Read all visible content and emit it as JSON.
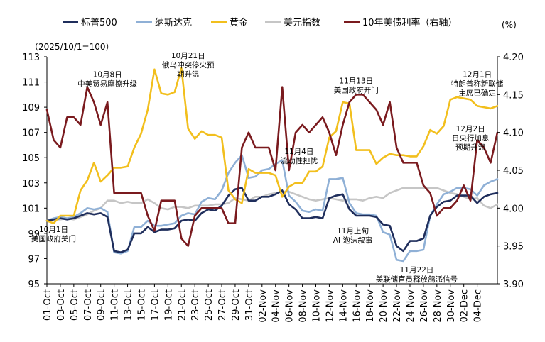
{
  "chart_data": {
    "type": "line",
    "left_axis_note": "（2025/10/1=100）",
    "right_axis_note": "(%)",
    "legend": [
      {
        "key": "sp500",
        "label": "标普500",
        "color": "#1f2e5c"
      },
      {
        "key": "nasdaq",
        "label": "纳斯达克",
        "color": "#8fb0d6"
      },
      {
        "key": "gold",
        "label": "黄金",
        "color": "#f2bf1d"
      },
      {
        "key": "dxy",
        "label": "美元指数",
        "color": "#c6c6c6"
      },
      {
        "key": "ust10",
        "label": "10年美债利率（右轴）",
        "color": "#7a1a1e"
      }
    ],
    "ylim": [
      95,
      113
    ],
    "y_ticks": [
      95,
      97,
      99,
      101,
      103,
      105,
      107,
      109,
      111,
      113
    ],
    "y2lim": [
      3.9,
      4.2
    ],
    "y2_ticks": [
      "3.90",
      "3.95",
      "4.00",
      "4.05",
      "4.10",
      "4.15",
      "4.20"
    ],
    "x_ticks": [
      "01-Oct",
      "03-Oct",
      "05-Oct",
      "07-Oct",
      "09-Oct",
      "11-Oct",
      "13-Oct",
      "15-Oct",
      "17-Oct",
      "19-Oct",
      "21-Oct",
      "23-Oct",
      "25-Oct",
      "27-Oct",
      "29-Oct",
      "31-Oct",
      "02-Nov",
      "04-Nov",
      "06-Nov",
      "08-Nov",
      "10-Nov",
      "12-Nov",
      "14-Nov",
      "16-Nov",
      "18-Nov",
      "20-Nov",
      "22-Nov",
      "24-Nov",
      "26-Nov",
      "28-Nov",
      "30-Nov",
      "02-Dec",
      "04-Dec"
    ],
    "series": {
      "sp500": [
        [
          0,
          100
        ],
        [
          1,
          100.1
        ],
        [
          2,
          100.2
        ],
        [
          3,
          100.1
        ],
        [
          4,
          100.2
        ],
        [
          5,
          100.4
        ],
        [
          6,
          100.6
        ],
        [
          7,
          100.5
        ],
        [
          8,
          100.6
        ],
        [
          9,
          100.3
        ],
        [
          10,
          97.6
        ],
        [
          11,
          97.5
        ],
        [
          12,
          97.7
        ],
        [
          13,
          99.0
        ],
        [
          14,
          99.0
        ],
        [
          15,
          99.5
        ],
        [
          16,
          99.1
        ],
        [
          17,
          99.3
        ],
        [
          18,
          99.3
        ],
        [
          19,
          99.4
        ],
        [
          20,
          100.0
        ],
        [
          21,
          100.1
        ],
        [
          22,
          100.0
        ],
        [
          23,
          100.6
        ],
        [
          24,
          100.9
        ],
        [
          25,
          100.8
        ],
        [
          26,
          101.2
        ],
        [
          27,
          102.0
        ],
        [
          28,
          102.5
        ],
        [
          29,
          102.6
        ],
        [
          30,
          101.6
        ],
        [
          31,
          101.6
        ],
        [
          32,
          101.9
        ],
        [
          33,
          101.9
        ],
        [
          34,
          102.1
        ],
        [
          35,
          102.4
        ],
        [
          36,
          101.3
        ],
        [
          37,
          100.9
        ],
        [
          38,
          100.2
        ],
        [
          39,
          100.2
        ],
        [
          40,
          100.3
        ],
        [
          41,
          100.2
        ],
        [
          42,
          101.8
        ],
        [
          43,
          102.0
        ],
        [
          44,
          102.1
        ],
        [
          45,
          100.9
        ],
        [
          46,
          100.4
        ],
        [
          47,
          100.4
        ],
        [
          48,
          100.4
        ],
        [
          49,
          100.3
        ],
        [
          50,
          99.7
        ],
        [
          51,
          99.6
        ],
        [
          52,
          98.0
        ],
        [
          53,
          97.6
        ],
        [
          54,
          98.4
        ],
        [
          55,
          98.4
        ],
        [
          56,
          98.6
        ],
        [
          57,
          100.4
        ],
        [
          58,
          101.1
        ],
        [
          59,
          101.5
        ],
        [
          60,
          101.6
        ],
        [
          61,
          102.0
        ],
        [
          62,
          102.0
        ],
        [
          63,
          102.0
        ],
        [
          64,
          101.4
        ],
        [
          65,
          101.9
        ],
        [
          66,
          102.1
        ],
        [
          67,
          102.2
        ]
      ],
      "nasdaq": [
        [
          0,
          100
        ],
        [
          1,
          100.2
        ],
        [
          2,
          100.3
        ],
        [
          3,
          100.2
        ],
        [
          4,
          100.3
        ],
        [
          5,
          100.6
        ],
        [
          6,
          101.0
        ],
        [
          7,
          100.9
        ],
        [
          8,
          101.0
        ],
        [
          9,
          100.7
        ],
        [
          10,
          97.5
        ],
        [
          11,
          97.4
        ],
        [
          12,
          97.6
        ],
        [
          13,
          99.5
        ],
        [
          14,
          99.5
        ],
        [
          15,
          100.0
        ],
        [
          16,
          99.6
        ],
        [
          17,
          99.6
        ],
        [
          18,
          99.7
        ],
        [
          19,
          99.8
        ],
        [
          20,
          100.4
        ],
        [
          21,
          100.6
        ],
        [
          22,
          100.5
        ],
        [
          23,
          101.5
        ],
        [
          24,
          101.8
        ],
        [
          25,
          101.7
        ],
        [
          26,
          102.4
        ],
        [
          27,
          103.8
        ],
        [
          28,
          104.6
        ],
        [
          29,
          105.2
        ],
        [
          30,
          103.4
        ],
        [
          31,
          103.5
        ],
        [
          32,
          104.0
        ],
        [
          33,
          104.1
        ],
        [
          34,
          104.5
        ],
        [
          35,
          104.8
        ],
        [
          36,
          102.0
        ],
        [
          37,
          101.5
        ],
        [
          38,
          100.8
        ],
        [
          39,
          100.7
        ],
        [
          40,
          100.9
        ],
        [
          41,
          100.8
        ],
        [
          42,
          103.3
        ],
        [
          43,
          103.3
        ],
        [
          44,
          103.4
        ],
        [
          45,
          101.4
        ],
        [
          46,
          100.6
        ],
        [
          47,
          100.5
        ],
        [
          48,
          100.5
        ],
        [
          49,
          100.4
        ],
        [
          50,
          99.1
        ],
        [
          51,
          98.9
        ],
        [
          52,
          96.9
        ],
        [
          53,
          96.8
        ],
        [
          54,
          97.6
        ],
        [
          55,
          97.6
        ],
        [
          56,
          97.7
        ],
        [
          57,
          100.4
        ],
        [
          58,
          101.3
        ],
        [
          59,
          102.1
        ],
        [
          60,
          102.3
        ],
        [
          61,
          102.6
        ],
        [
          62,
          102.6
        ],
        [
          63,
          102.5
        ],
        [
          64,
          102.0
        ],
        [
          65,
          102.8
        ],
        [
          66,
          103.1
        ],
        [
          67,
          103.3
        ]
      ],
      "gold": [
        [
          0,
          100
        ],
        [
          1,
          99.8
        ],
        [
          2,
          100.4
        ],
        [
          3,
          100.4
        ],
        [
          4,
          100.4
        ],
        [
          5,
          102.4
        ],
        [
          6,
          103.2
        ],
        [
          7,
          104.6
        ],
        [
          8,
          103.1
        ],
        [
          9,
          103.6
        ],
        [
          10,
          104.2
        ],
        [
          11,
          104.2
        ],
        [
          12,
          104.3
        ],
        [
          13,
          105.8
        ],
        [
          14,
          106.9
        ],
        [
          15,
          108.8
        ],
        [
          16,
          112.0
        ],
        [
          17,
          110.1
        ],
        [
          18,
          110.0
        ],
        [
          19,
          110.2
        ],
        [
          20,
          112.1
        ],
        [
          21,
          107.3
        ],
        [
          22,
          106.5
        ],
        [
          23,
          107.1
        ],
        [
          24,
          106.8
        ],
        [
          25,
          106.8
        ],
        [
          26,
          106.6
        ],
        [
          27,
          102.4
        ],
        [
          28,
          101.7
        ],
        [
          29,
          101.4
        ],
        [
          30,
          104.1
        ],
        [
          31,
          103.8
        ],
        [
          32,
          103.8
        ],
        [
          33,
          103.8
        ],
        [
          34,
          103.6
        ],
        [
          35,
          101.9
        ],
        [
          36,
          102.7
        ],
        [
          37,
          103.0
        ],
        [
          38,
          103.0
        ],
        [
          39,
          103.9
        ],
        [
          40,
          103.9
        ],
        [
          41,
          104.3
        ],
        [
          42,
          106.6
        ],
        [
          43,
          107.1
        ],
        [
          44,
          109.4
        ],
        [
          45,
          109.3
        ],
        [
          46,
          105.6
        ],
        [
          47,
          105.6
        ],
        [
          48,
          105.6
        ],
        [
          49,
          104.5
        ],
        [
          50,
          105.0
        ],
        [
          51,
          105.3
        ],
        [
          52,
          105.2
        ],
        [
          53,
          105.2
        ],
        [
          54,
          105.1
        ],
        [
          55,
          105.1
        ],
        [
          56,
          105.9
        ],
        [
          57,
          107.2
        ],
        [
          58,
          106.9
        ],
        [
          59,
          107.5
        ],
        [
          60,
          109.6
        ],
        [
          61,
          109.8
        ],
        [
          62,
          109.7
        ],
        [
          63,
          109.6
        ],
        [
          64,
          109.1
        ],
        [
          65,
          109.0
        ],
        [
          66,
          108.9
        ],
        [
          67,
          109.1
        ]
      ],
      "dxy": [
        [
          0,
          100
        ],
        [
          1,
          100.1
        ],
        [
          2,
          100.1
        ],
        [
          3,
          100.2
        ],
        [
          4,
          100.1
        ],
        [
          5,
          100.3
        ],
        [
          6,
          100.5
        ],
        [
          7,
          100.8
        ],
        [
          8,
          101.0
        ],
        [
          9,
          101.6
        ],
        [
          10,
          101.6
        ],
        [
          11,
          101.4
        ],
        [
          12,
          101.5
        ],
        [
          13,
          101.4
        ],
        [
          14,
          101.4
        ],
        [
          15,
          101.7
        ],
        [
          16,
          101.4
        ],
        [
          17,
          101.0
        ],
        [
          18,
          100.9
        ],
        [
          19,
          101.1
        ],
        [
          20,
          101.1
        ],
        [
          21,
          101.0
        ],
        [
          22,
          101.2
        ],
        [
          23,
          101.2
        ],
        [
          24,
          101.2
        ],
        [
          25,
          101.3
        ],
        [
          26,
          101.3
        ],
        [
          27,
          101.4
        ],
        [
          28,
          101.8
        ],
        [
          29,
          101.7
        ],
        [
          30,
          101.6
        ],
        [
          31,
          101.9
        ],
        [
          32,
          101.9
        ],
        [
          33,
          102.1
        ],
        [
          34,
          102.2
        ],
        [
          35,
          102.3
        ],
        [
          36,
          102.3
        ],
        [
          37,
          102.1
        ],
        [
          38,
          101.9
        ],
        [
          39,
          101.7
        ],
        [
          40,
          101.6
        ],
        [
          41,
          101.7
        ],
        [
          42,
          101.8
        ],
        [
          43,
          101.7
        ],
        [
          44,
          101.6
        ],
        [
          45,
          101.7
        ],
        [
          46,
          101.7
        ],
        [
          47,
          101.6
        ],
        [
          48,
          101.8
        ],
        [
          49,
          101.9
        ],
        [
          50,
          101.8
        ],
        [
          51,
          102.2
        ],
        [
          52,
          102.4
        ],
        [
          53,
          102.6
        ],
        [
          54,
          102.6
        ],
        [
          55,
          102.6
        ],
        [
          56,
          102.6
        ],
        [
          57,
          102.6
        ],
        [
          58,
          102.6
        ],
        [
          59,
          102.4
        ],
        [
          60,
          102.2
        ],
        [
          61,
          102.1
        ],
        [
          62,
          101.9
        ],
        [
          63,
          101.7
        ],
        [
          64,
          101.8
        ],
        [
          65,
          101.2
        ],
        [
          66,
          101.0
        ],
        [
          67,
          101.3
        ]
      ],
      "ust10": [
        [
          0,
          4.13
        ],
        [
          1,
          4.09
        ],
        [
          2,
          4.08
        ],
        [
          3,
          4.12
        ],
        [
          4,
          4.12
        ],
        [
          5,
          4.11
        ],
        [
          6,
          4.16
        ],
        [
          7,
          4.14
        ],
        [
          8,
          4.11
        ],
        [
          9,
          4.14
        ],
        [
          10,
          4.02
        ],
        [
          11,
          4.02
        ],
        [
          12,
          4.02
        ],
        [
          13,
          4.02
        ],
        [
          14,
          4.02
        ],
        [
          15,
          3.99
        ],
        [
          16,
          3.97
        ],
        [
          17,
          4.01
        ],
        [
          18,
          4.01
        ],
        [
          19,
          4.01
        ],
        [
          20,
          3.96
        ],
        [
          21,
          3.95
        ],
        [
          22,
          3.99
        ],
        [
          23,
          4.0
        ],
        [
          24,
          4.0
        ],
        [
          25,
          4.0
        ],
        [
          26,
          4.0
        ],
        [
          27,
          3.98
        ],
        [
          28,
          3.98
        ],
        [
          29,
          4.08
        ],
        [
          30,
          4.1
        ],
        [
          31,
          4.08
        ],
        [
          32,
          4.08
        ],
        [
          33,
          4.08
        ],
        [
          34,
          4.05
        ],
        [
          35,
          4.16
        ],
        [
          36,
          4.05
        ],
        [
          37,
          4.1
        ],
        [
          38,
          4.11
        ],
        [
          39,
          4.1
        ],
        [
          40,
          4.11
        ],
        [
          41,
          4.12
        ],
        [
          42,
          4.1
        ],
        [
          43,
          4.07
        ],
        [
          44,
          4.11
        ],
        [
          45,
          4.14
        ],
        [
          46,
          4.15
        ],
        [
          47,
          4.15
        ],
        [
          48,
          4.14
        ],
        [
          49,
          4.13
        ],
        [
          50,
          4.11
        ],
        [
          51,
          4.14
        ],
        [
          52,
          4.08
        ],
        [
          53,
          4.06
        ],
        [
          54,
          4.06
        ],
        [
          55,
          4.06
        ],
        [
          56,
          4.03
        ],
        [
          57,
          4.02
        ],
        [
          58,
          3.99
        ],
        [
          59,
          4.0
        ],
        [
          60,
          4.0
        ],
        [
          61,
          4.01
        ],
        [
          62,
          4.03
        ],
        [
          63,
          4.01
        ],
        [
          64,
          4.09
        ],
        [
          65,
          4.08
        ],
        [
          66,
          4.06
        ],
        [
          67,
          4.1
        ]
      ]
    },
    "annotations": [
      {
        "lines": [
          "10月8日",
          "中美贸易摩擦升级"
        ],
        "x": 9,
        "y": 111.4
      },
      {
        "lines": [
          "10月21日",
          "俄乌冲突停火预",
          "期升温"
        ],
        "x": 21,
        "y": 112.9
      },
      {
        "lines": [
          "11月4日",
          "流动性担忧"
        ],
        "x": 37.5,
        "y": 105.3
      },
      {
        "lines": [
          "11月13日",
          "美国政府开门"
        ],
        "x": 46,
        "y": 110.9
      },
      {
        "lines": [
          "12月1日",
          "特朗普称新联储",
          "主席已确定"
        ],
        "x": 64,
        "y": 111.4
      },
      {
        "lines": [
          "12月2日",
          "日央行加息",
          "预期升温"
        ],
        "x": 63,
        "y": 107.1
      },
      {
        "lines": [
          "10月1日",
          "美国政府关门"
        ],
        "x": 1,
        "y": 99.1
      },
      {
        "lines": [
          "11月上旬",
          "AI 泡沫叙事"
        ],
        "x": 45.5,
        "y": 99.0
      },
      {
        "lines": [
          "11月22日",
          "美联储官员释放鸽派信号"
        ],
        "x": 55,
        "y": 95.9
      }
    ]
  }
}
